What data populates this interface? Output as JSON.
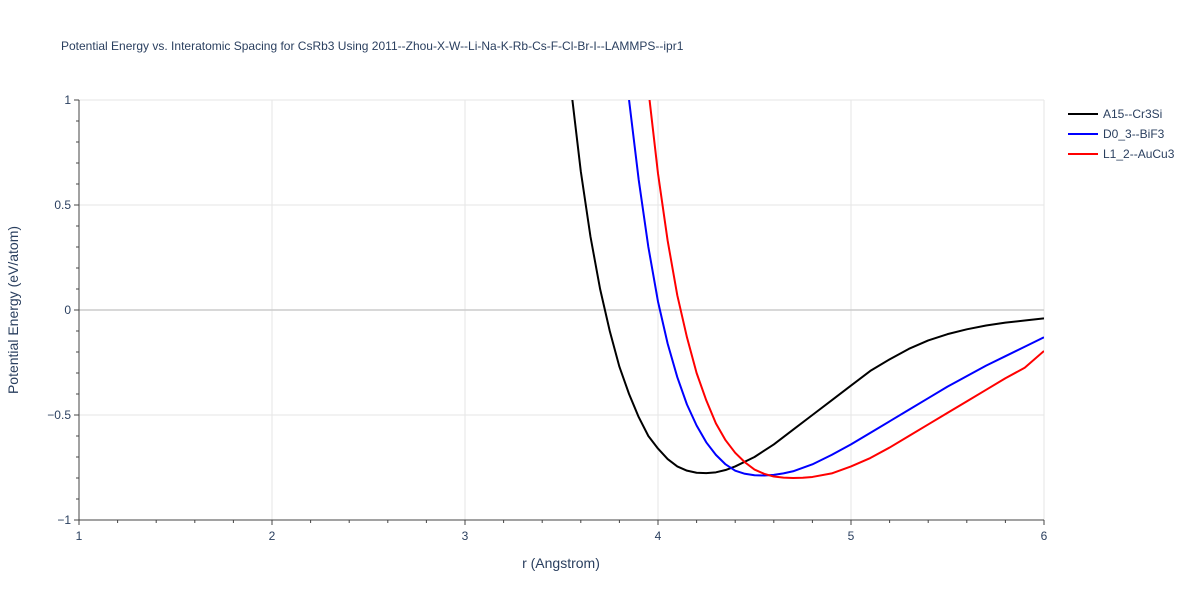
{
  "chart_data": {
    "type": "line",
    "title": "Potential Energy vs. Interatomic Spacing for CsRb3 Using 2011--Zhou-X-W--Li-Na-K-Rb-Cs-F-Cl-Br-I--LAMMPS--ipr1",
    "xlabel": "r (Angstrom)",
    "ylabel": "Potential Energy (eV/atom)",
    "xlim": [
      1,
      6
    ],
    "ylim": [
      -1,
      1
    ],
    "xticks": [
      1,
      2,
      3,
      4,
      5,
      6
    ],
    "yticks": [
      -1,
      -0.5,
      0,
      0.5,
      1
    ],
    "ytick_labels": [
      "−1",
      "−0.5",
      "0",
      "0.5",
      "1"
    ],
    "grid": true,
    "legend_position": "top-right",
    "series": [
      {
        "name": "A15--Cr3Si",
        "color": "#000000",
        "x": [
          3.55,
          3.6,
          3.65,
          3.7,
          3.75,
          3.8,
          3.85,
          3.9,
          3.95,
          4.0,
          4.05,
          4.1,
          4.15,
          4.2,
          4.25,
          4.3,
          4.35,
          4.4,
          4.5,
          4.6,
          4.7,
          4.8,
          4.9,
          5.0,
          5.1,
          5.2,
          5.3,
          5.4,
          5.5,
          5.6,
          5.7,
          5.8,
          5.9,
          6.0
        ],
        "y": [
          1.05,
          0.66,
          0.35,
          0.1,
          -0.1,
          -0.27,
          -0.4,
          -0.51,
          -0.6,
          -0.66,
          -0.71,
          -0.745,
          -0.765,
          -0.775,
          -0.777,
          -0.773,
          -0.762,
          -0.745,
          -0.7,
          -0.64,
          -0.57,
          -0.5,
          -0.43,
          -0.36,
          -0.29,
          -0.235,
          -0.185,
          -0.145,
          -0.115,
          -0.092,
          -0.074,
          -0.06,
          -0.05,
          -0.04
        ]
      },
      {
        "name": "D0_3--BiF3",
        "color": "#0000ff",
        "x": [
          3.85,
          3.9,
          3.95,
          4.0,
          4.05,
          4.1,
          4.15,
          4.2,
          4.25,
          4.3,
          4.35,
          4.4,
          4.45,
          4.5,
          4.55,
          4.6,
          4.65,
          4.7,
          4.8,
          4.9,
          5.0,
          5.1,
          5.2,
          5.3,
          5.4,
          5.5,
          5.6,
          5.7,
          5.8,
          5.9,
          6.0
        ],
        "y": [
          1.0,
          0.62,
          0.3,
          0.04,
          -0.16,
          -0.32,
          -0.45,
          -0.55,
          -0.63,
          -0.69,
          -0.735,
          -0.765,
          -0.78,
          -0.787,
          -0.788,
          -0.785,
          -0.778,
          -0.768,
          -0.735,
          -0.69,
          -0.64,
          -0.585,
          -0.53,
          -0.475,
          -0.42,
          -0.365,
          -0.315,
          -0.265,
          -0.22,
          -0.175,
          -0.13
        ]
      },
      {
        "name": "L1_2--AuCu3",
        "color": "#ff0000",
        "x": [
          3.95,
          4.0,
          4.05,
          4.1,
          4.15,
          4.2,
          4.25,
          4.3,
          4.35,
          4.4,
          4.45,
          4.5,
          4.55,
          4.6,
          4.65,
          4.7,
          4.75,
          4.8,
          4.9,
          5.0,
          5.1,
          5.2,
          5.3,
          5.4,
          5.5,
          5.6,
          5.7,
          5.8,
          5.9,
          6.0
        ],
        "y": [
          1.05,
          0.65,
          0.33,
          0.07,
          -0.13,
          -0.3,
          -0.43,
          -0.54,
          -0.62,
          -0.68,
          -0.725,
          -0.76,
          -0.78,
          -0.793,
          -0.798,
          -0.8,
          -0.799,
          -0.795,
          -0.778,
          -0.745,
          -0.705,
          -0.655,
          -0.6,
          -0.545,
          -0.49,
          -0.435,
          -0.38,
          -0.325,
          -0.275,
          -0.195
        ]
      }
    ]
  }
}
